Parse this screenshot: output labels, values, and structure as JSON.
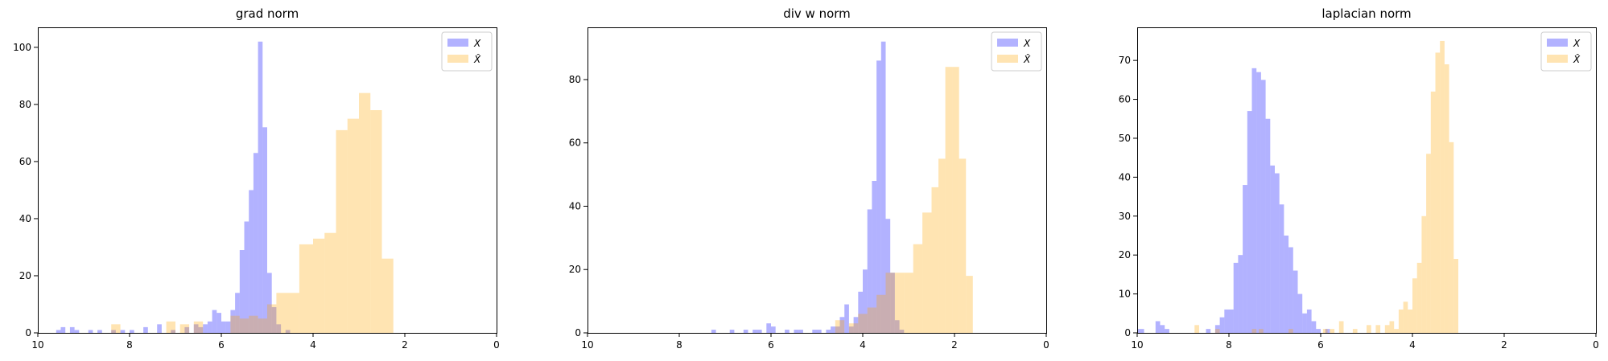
{
  "chart_data": [
    {
      "type": "histogram",
      "title": "grad norm",
      "x_axis": {
        "inverted": true,
        "range": [
          10,
          0
        ],
        "ticks": [
          10,
          8,
          6,
          4,
          2,
          0
        ],
        "tick_labels": [
          "10",
          "8",
          "6",
          "4",
          "2",
          "0"
        ]
      },
      "y_axis": {
        "range": [
          0,
          107
        ],
        "ticks": [
          0,
          20,
          40,
          60,
          80,
          100
        ],
        "tick_labels": [
          "0",
          "20",
          "40",
          "60",
          "80",
          "100"
        ]
      },
      "legend": {
        "placement": "top-right",
        "entries": [
          "X",
          "X̂"
        ]
      },
      "series": [
        {
          "name": "X",
          "color": "#0000ff",
          "alpha": 0.3,
          "bins": [
            [
              9.6,
              9.5,
              1
            ],
            [
              9.5,
              9.4,
              2
            ],
            [
              9.3,
              9.2,
              2
            ],
            [
              9.2,
              9.1,
              1
            ],
            [
              8.9,
              8.8,
              1
            ],
            [
              8.7,
              8.6,
              1
            ],
            [
              8.4,
              8.3,
              1
            ],
            [
              8.2,
              8.1,
              1
            ],
            [
              8.0,
              7.9,
              1
            ],
            [
              7.7,
              7.6,
              2
            ],
            [
              7.4,
              7.3,
              3
            ],
            [
              7.1,
              7.0,
              1
            ],
            [
              6.8,
              6.7,
              2
            ],
            [
              6.6,
              6.5,
              3
            ],
            [
              6.5,
              6.4,
              2
            ],
            [
              6.4,
              6.3,
              3
            ],
            [
              6.3,
              6.2,
              4
            ],
            [
              6.2,
              6.1,
              8
            ],
            [
              6.1,
              6.0,
              7
            ],
            [
              6.0,
              5.9,
              4
            ],
            [
              5.9,
              5.8,
              4
            ],
            [
              5.8,
              5.7,
              8
            ],
            [
              5.7,
              5.6,
              14
            ],
            [
              5.6,
              5.5,
              29
            ],
            [
              5.5,
              5.4,
              39
            ],
            [
              5.4,
              5.3,
              50
            ],
            [
              5.3,
              5.2,
              63
            ],
            [
              5.2,
              5.1,
              102
            ],
            [
              5.1,
              5.0,
              72
            ],
            [
              5.0,
              4.9,
              21
            ],
            [
              4.9,
              4.8,
              9
            ],
            [
              4.8,
              4.7,
              3
            ],
            [
              4.6,
              4.5,
              1
            ]
          ]
        },
        {
          "name": "X̂",
          "color": "#ffa500",
          "alpha": 0.3,
          "bins": [
            [
              8.4,
              8.2,
              3
            ],
            [
              7.2,
              7.0,
              4
            ],
            [
              6.9,
              6.7,
              3
            ],
            [
              6.6,
              6.4,
              4
            ],
            [
              5.8,
              5.6,
              6
            ],
            [
              5.6,
              5.4,
              5
            ],
            [
              5.4,
              5.2,
              6
            ],
            [
              5.2,
              5.0,
              5
            ],
            [
              5.0,
              4.8,
              10
            ],
            [
              4.8,
              4.3,
              14
            ],
            [
              4.3,
              4.0,
              31
            ],
            [
              4.0,
              3.75,
              33
            ],
            [
              3.75,
              3.5,
              35
            ],
            [
              3.5,
              3.25,
              71
            ],
            [
              3.25,
              3.0,
              75
            ],
            [
              3.0,
              2.75,
              84
            ],
            [
              2.75,
              2.5,
              78
            ],
            [
              2.5,
              2.25,
              26
            ]
          ]
        }
      ]
    },
    {
      "type": "histogram",
      "title": "div w norm",
      "x_axis": {
        "inverted": true,
        "range": [
          10,
          0
        ],
        "ticks": [
          10,
          8,
          6,
          4,
          2,
          0
        ],
        "tick_labels": [
          "10",
          "8",
          "6",
          "4",
          "2",
          "0"
        ]
      },
      "y_axis": {
        "range": [
          0,
          96.5
        ],
        "ticks": [
          0,
          20,
          40,
          60,
          80
        ],
        "tick_labels": [
          "0",
          "20",
          "40",
          "60",
          "80"
        ]
      },
      "legend": {
        "placement": "top-right",
        "entries": [
          "X",
          "X̂"
        ]
      },
      "series": [
        {
          "name": "X",
          "color": "#0000ff",
          "alpha": 0.3,
          "bins": [
            [
              7.3,
              7.2,
              1
            ],
            [
              6.9,
              6.8,
              1
            ],
            [
              6.6,
              6.5,
              1
            ],
            [
              6.4,
              6.3,
              1
            ],
            [
              6.3,
              6.2,
              1
            ],
            [
              6.1,
              6.0,
              3
            ],
            [
              6.0,
              5.9,
              2
            ],
            [
              5.7,
              5.6,
              1
            ],
            [
              5.5,
              5.4,
              1
            ],
            [
              5.4,
              5.3,
              1
            ],
            [
              5.1,
              5.0,
              1
            ],
            [
              5.0,
              4.9,
              1
            ],
            [
              4.8,
              4.7,
              1
            ],
            [
              4.7,
              4.6,
              2
            ],
            [
              4.6,
              4.5,
              2
            ],
            [
              4.5,
              4.4,
              5
            ],
            [
              4.4,
              4.3,
              9
            ],
            [
              4.3,
              4.2,
              2
            ],
            [
              4.2,
              4.1,
              5
            ],
            [
              4.1,
              4.0,
              13
            ],
            [
              4.0,
              3.9,
              20
            ],
            [
              3.9,
              3.8,
              39
            ],
            [
              3.8,
              3.7,
              48
            ],
            [
              3.7,
              3.6,
              86
            ],
            [
              3.6,
              3.5,
              92
            ],
            [
              3.5,
              3.4,
              36
            ],
            [
              3.4,
              3.3,
              19
            ],
            [
              3.3,
              3.2,
              4
            ],
            [
              3.2,
              3.1,
              1
            ]
          ]
        },
        {
          "name": "X̂",
          "color": "#ffa500",
          "alpha": 0.3,
          "bins": [
            [
              4.6,
              4.4,
              4
            ],
            [
              4.3,
              4.1,
              3
            ],
            [
              4.1,
              3.9,
              6
            ],
            [
              3.9,
              3.7,
              8
            ],
            [
              3.7,
              3.5,
              12
            ],
            [
              3.5,
              3.3,
              19
            ],
            [
              3.3,
              3.1,
              19
            ],
            [
              3.1,
              2.9,
              19
            ],
            [
              2.9,
              2.7,
              28
            ],
            [
              2.7,
              2.5,
              38
            ],
            [
              2.5,
              2.35,
              46
            ],
            [
              2.35,
              2.2,
              55
            ],
            [
              2.2,
              2.05,
              84
            ],
            [
              2.05,
              1.9,
              84
            ],
            [
              1.9,
              1.75,
              55
            ],
            [
              1.75,
              1.6,
              18
            ]
          ]
        }
      ]
    },
    {
      "type": "histogram",
      "title": "laplacian norm",
      "x_axis": {
        "inverted": true,
        "range": [
          10,
          0
        ],
        "ticks": [
          10,
          8,
          6,
          4,
          2,
          0
        ],
        "tick_labels": [
          "10",
          "8",
          "6",
          "4",
          "2",
          "0"
        ]
      },
      "y_axis": {
        "range": [
          0,
          78.5
        ],
        "ticks": [
          0,
          10,
          20,
          30,
          40,
          50,
          60,
          70
        ],
        "tick_labels": [
          "0",
          "10",
          "20",
          "30",
          "40",
          "50",
          "60",
          "70"
        ]
      },
      "legend": {
        "placement": "top-right",
        "entries": [
          "X",
          "X̂"
        ]
      },
      "series": [
        {
          "name": "X",
          "color": "#0000ff",
          "alpha": 0.3,
          "bins": [
            [
              10.0,
              9.85,
              1
            ],
            [
              9.6,
              9.5,
              3
            ],
            [
              9.5,
              9.4,
              2
            ],
            [
              9.4,
              9.3,
              1
            ],
            [
              8.5,
              8.4,
              1
            ],
            [
              8.3,
              8.2,
              2
            ],
            [
              8.2,
              8.1,
              4
            ],
            [
              8.1,
              8.0,
              6
            ],
            [
              8.0,
              7.9,
              6
            ],
            [
              7.9,
              7.8,
              18
            ],
            [
              7.8,
              7.7,
              20
            ],
            [
              7.7,
              7.6,
              38
            ],
            [
              7.6,
              7.5,
              57
            ],
            [
              7.5,
              7.4,
              68
            ],
            [
              7.4,
              7.3,
              67
            ],
            [
              7.3,
              7.2,
              65
            ],
            [
              7.2,
              7.1,
              55
            ],
            [
              7.1,
              7.0,
              43
            ],
            [
              7.0,
              6.9,
              41
            ],
            [
              6.9,
              6.8,
              33
            ],
            [
              6.8,
              6.7,
              25
            ],
            [
              6.7,
              6.6,
              22
            ],
            [
              6.6,
              6.5,
              16
            ],
            [
              6.5,
              6.4,
              10
            ],
            [
              6.4,
              6.3,
              5
            ],
            [
              6.3,
              6.2,
              6
            ],
            [
              6.2,
              6.1,
              3
            ],
            [
              6.1,
              6.0,
              1
            ],
            [
              5.9,
              5.8,
              1
            ]
          ]
        },
        {
          "name": "X̂",
          "color": "#ffa500",
          "alpha": 0.3,
          "bins": [
            [
              8.75,
              8.65,
              2
            ],
            [
              8.3,
              8.2,
              1
            ],
            [
              7.5,
              7.4,
              1
            ],
            [
              7.35,
              7.25,
              1
            ],
            [
              6.7,
              6.6,
              1
            ],
            [
              5.95,
              5.85,
              1
            ],
            [
              5.8,
              5.7,
              1
            ],
            [
              5.6,
              5.5,
              3
            ],
            [
              5.3,
              5.2,
              1
            ],
            [
              5.0,
              4.9,
              2
            ],
            [
              4.8,
              4.7,
              2
            ],
            [
              4.6,
              4.5,
              2
            ],
            [
              4.5,
              4.4,
              3
            ],
            [
              4.4,
              4.3,
              1
            ],
            [
              4.3,
              4.2,
              6
            ],
            [
              4.2,
              4.1,
              8
            ],
            [
              4.1,
              4.0,
              6
            ],
            [
              4.0,
              3.9,
              14
            ],
            [
              3.9,
              3.8,
              18
            ],
            [
              3.8,
              3.7,
              30
            ],
            [
              3.7,
              3.6,
              46
            ],
            [
              3.6,
              3.5,
              62
            ],
            [
              3.5,
              3.4,
              72
            ],
            [
              3.4,
              3.3,
              75
            ],
            [
              3.3,
              3.2,
              69
            ],
            [
              3.2,
              3.1,
              49
            ],
            [
              3.1,
              3.0,
              19
            ]
          ]
        }
      ]
    }
  ]
}
